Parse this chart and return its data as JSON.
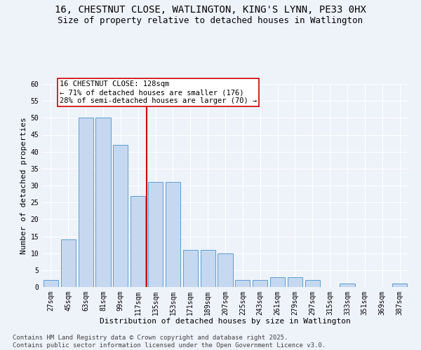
{
  "title_line1": "16, CHESTNUT CLOSE, WATLINGTON, KING'S LYNN, PE33 0HX",
  "title_line2": "Size of property relative to detached houses in Watlington",
  "xlabel": "Distribution of detached houses by size in Watlington",
  "ylabel": "Number of detached properties",
  "categories": [
    "27sqm",
    "45sqm",
    "63sqm",
    "81sqm",
    "99sqm",
    "117sqm",
    "135sqm",
    "153sqm",
    "171sqm",
    "189sqm",
    "207sqm",
    "225sqm",
    "243sqm",
    "261sqm",
    "279sqm",
    "297sqm",
    "315sqm",
    "333sqm",
    "351sqm",
    "369sqm",
    "387sqm"
  ],
  "values": [
    2,
    14,
    50,
    50,
    42,
    27,
    31,
    31,
    11,
    11,
    10,
    2,
    2,
    3,
    3,
    2,
    0,
    1,
    0,
    0,
    1
  ],
  "bar_color": "#c5d8f0",
  "bar_edge_color": "#5a9fd4",
  "vline_x": 5.5,
  "vline_color": "#cc0000",
  "annotation_text": "16 CHESTNUT CLOSE: 128sqm\n← 71% of detached houses are smaller (176)\n28% of semi-detached houses are larger (70) →",
  "annotation_box_color": "#ffffff",
  "annotation_box_edge": "#cc0000",
  "ylim": [
    0,
    60
  ],
  "yticks": [
    0,
    5,
    10,
    15,
    20,
    25,
    30,
    35,
    40,
    45,
    50,
    55,
    60
  ],
  "footnote": "Contains HM Land Registry data © Crown copyright and database right 2025.\nContains public sector information licensed under the Open Government Licence v3.0.",
  "background_color": "#eef2f9",
  "grid_color": "#ffffff",
  "title_fontsize": 10,
  "subtitle_fontsize": 9,
  "axis_label_fontsize": 8,
  "tick_fontsize": 7,
  "annotation_fontsize": 7.5,
  "footnote_fontsize": 6.5
}
